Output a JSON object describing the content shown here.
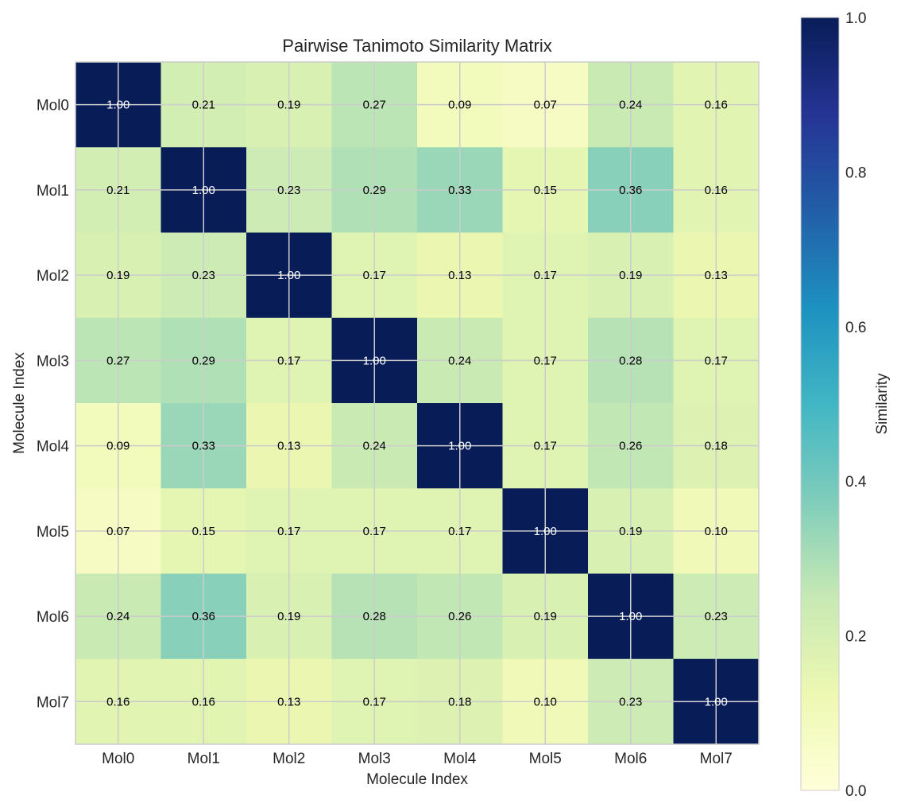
{
  "chart_data": {
    "type": "heatmap",
    "title": "Pairwise Tanimoto Similarity Matrix",
    "xlabel": "Molecule Index",
    "ylabel": "Molecule Index",
    "x_categories": [
      "Mol0",
      "Mol1",
      "Mol2",
      "Mol3",
      "Mol4",
      "Mol5",
      "Mol6",
      "Mol7"
    ],
    "y_categories": [
      "Mol0",
      "Mol1",
      "Mol2",
      "Mol3",
      "Mol4",
      "Mol5",
      "Mol6",
      "Mol7"
    ],
    "values": [
      [
        1.0,
        0.21,
        0.19,
        0.27,
        0.09,
        0.07,
        0.24,
        0.16
      ],
      [
        0.21,
        1.0,
        0.23,
        0.29,
        0.33,
        0.15,
        0.36,
        0.16
      ],
      [
        0.19,
        0.23,
        1.0,
        0.17,
        0.13,
        0.17,
        0.19,
        0.13
      ],
      [
        0.27,
        0.29,
        0.17,
        1.0,
        0.24,
        0.17,
        0.28,
        0.17
      ],
      [
        0.09,
        0.33,
        0.13,
        0.24,
        1.0,
        0.17,
        0.26,
        0.18
      ],
      [
        0.07,
        0.15,
        0.17,
        0.17,
        0.17,
        1.0,
        0.19,
        0.1
      ],
      [
        0.24,
        0.36,
        0.19,
        0.28,
        0.26,
        0.19,
        1.0,
        0.23
      ],
      [
        0.16,
        0.16,
        0.13,
        0.17,
        0.18,
        0.1,
        0.23,
        1.0
      ]
    ],
    "value_format": "0.00",
    "colormap": "YlGnBu",
    "colorbar": {
      "label": "Similarity",
      "range": [
        0.0,
        1.0
      ],
      "ticks": [
        "0.0",
        "0.2",
        "0.4",
        "0.6",
        "0.8",
        "1.0"
      ]
    },
    "grid": true,
    "colors": {
      "high": "#081d58",
      "low": "#ffffd9",
      "grid": "#cccccc",
      "text_dark_cell": "#ffffff",
      "text_light_cell": "#000000"
    }
  }
}
